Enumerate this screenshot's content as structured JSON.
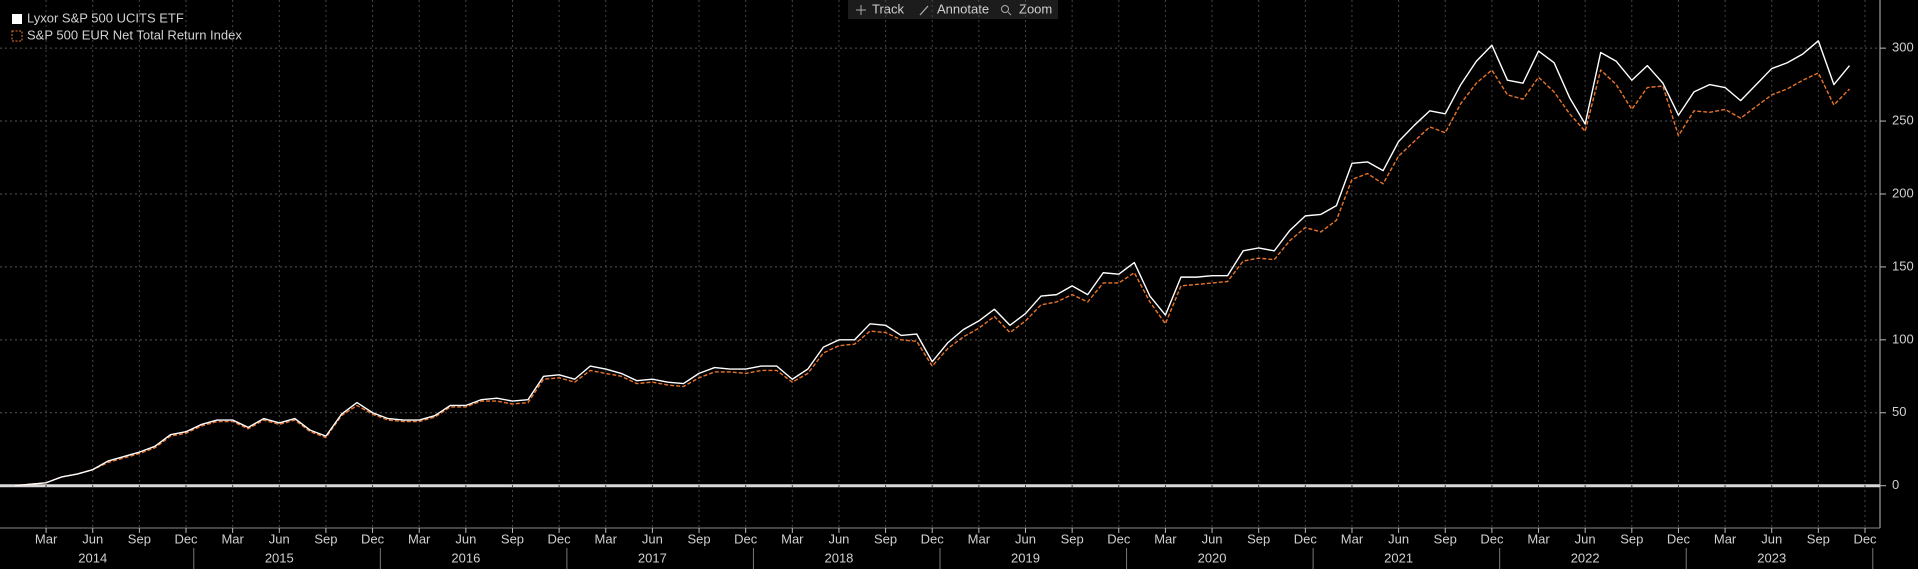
{
  "toolbar": [
    "Track",
    "Annotate",
    "Zoom"
  ],
  "chart_data": {
    "type": "line",
    "x": [
      "2014-01",
      "2014-02",
      "2014-03",
      "2014-04",
      "2014-05",
      "2014-06",
      "2014-07",
      "2014-08",
      "2014-09",
      "2014-10",
      "2014-11",
      "2014-12",
      "2015-01",
      "2015-02",
      "2015-03",
      "2015-04",
      "2015-05",
      "2015-06",
      "2015-07",
      "2015-08",
      "2015-09",
      "2015-10",
      "2015-11",
      "2015-12",
      "2016-01",
      "2016-02",
      "2016-03",
      "2016-04",
      "2016-05",
      "2016-06",
      "2016-07",
      "2016-08",
      "2016-09",
      "2016-10",
      "2016-11",
      "2016-12",
      "2017-01",
      "2017-02",
      "2017-03",
      "2017-04",
      "2017-05",
      "2017-06",
      "2017-07",
      "2017-08",
      "2017-09",
      "2017-10",
      "2017-11",
      "2017-12",
      "2018-01",
      "2018-02",
      "2018-03",
      "2018-04",
      "2018-05",
      "2018-06",
      "2018-07",
      "2018-08",
      "2018-09",
      "2018-10",
      "2018-11",
      "2018-12",
      "2019-01",
      "2019-02",
      "2019-03",
      "2019-04",
      "2019-05",
      "2019-06",
      "2019-07",
      "2019-08",
      "2019-09",
      "2019-10",
      "2019-11",
      "2019-12",
      "2020-01",
      "2020-02",
      "2020-03",
      "2020-04",
      "2020-05",
      "2020-06",
      "2020-07",
      "2020-08",
      "2020-09",
      "2020-10",
      "2020-11",
      "2020-12",
      "2021-01",
      "2021-02",
      "2021-03",
      "2021-04",
      "2021-05",
      "2021-06",
      "2021-07",
      "2021-08",
      "2021-09",
      "2021-10",
      "2021-11",
      "2021-12",
      "2022-01",
      "2022-02",
      "2022-03",
      "2022-04",
      "2022-05",
      "2022-06",
      "2022-07",
      "2022-08",
      "2022-09",
      "2022-10",
      "2022-11",
      "2022-12",
      "2023-01",
      "2023-02",
      "2023-03",
      "2023-04",
      "2023-05",
      "2023-06",
      "2023-07",
      "2023-08",
      "2023-09",
      "2023-10",
      "2023-11"
    ],
    "series": [
      {
        "name": "Lyxor S&P 500 UCITS ETF",
        "color": "#ffffff",
        "dashed": false,
        "values": [
          0,
          1,
          2,
          6,
          8,
          11,
          17,
          20,
          23,
          27,
          35,
          37,
          42,
          45,
          45,
          40,
          46,
          43,
          46,
          38,
          34,
          49,
          57,
          50,
          46,
          45,
          45,
          48,
          55,
          55,
          59,
          60,
          58,
          59,
          75,
          76,
          73,
          82,
          80,
          77,
          72,
          73,
          71,
          70,
          77,
          81,
          80,
          80,
          82,
          82,
          73,
          80,
          95,
          100,
          100,
          111,
          110,
          103,
          104,
          85,
          98,
          107,
          113,
          121,
          110,
          118,
          130,
          131,
          137,
          131,
          146,
          145,
          153,
          130,
          117,
          143,
          143,
          144,
          144,
          161,
          163,
          161,
          175,
          185,
          186,
          192,
          221,
          222,
          216,
          236,
          247,
          257,
          255,
          275,
          291,
          302,
          278,
          276,
          298,
          290,
          266,
          248,
          297,
          291,
          278,
          288,
          276,
          254,
          270,
          275,
          273,
          264,
          275,
          286,
          290,
          296,
          305,
          275,
          288
        ]
      },
      {
        "name": "S&P 500 EUR Net Total Return Index",
        "color": "#e8742a",
        "dashed": true,
        "values": [
          0,
          1,
          2,
          6,
          8,
          11,
          16,
          19,
          22,
          26,
          34,
          36,
          41,
          44,
          44,
          39,
          45,
          42,
          45,
          37,
          33,
          48,
          55,
          49,
          45,
          44,
          44,
          47,
          54,
          54,
          58,
          58,
          56,
          57,
          73,
          74,
          71,
          79,
          77,
          75,
          70,
          71,
          69,
          68,
          74,
          78,
          78,
          77,
          79,
          79,
          71,
          77,
          91,
          96,
          97,
          106,
          105,
          100,
          99,
          82,
          94,
          102,
          108,
          116,
          105,
          113,
          124,
          126,
          131,
          126,
          139,
          139,
          146,
          126,
          111,
          137,
          138,
          139,
          140,
          154,
          156,
          155,
          168,
          177,
          174,
          182,
          210,
          214,
          207,
          226,
          236,
          246,
          242,
          262,
          276,
          285,
          268,
          265,
          280,
          270,
          255,
          243,
          285,
          275,
          258,
          273,
          274,
          240,
          257,
          256,
          258,
          252,
          260,
          268,
          272,
          278,
          283,
          261,
          272
        ]
      }
    ],
    "xlim": [
      "2014-01",
      "2023-12"
    ],
    "xticks": [
      {
        "value": "2014-03",
        "label": "Mar"
      },
      {
        "value": "2014-06",
        "label": "Jun"
      },
      {
        "value": "2014-09",
        "label": "Sep"
      },
      {
        "value": "2014-12",
        "label": "Dec"
      },
      {
        "value": "2015-03",
        "label": "Mar"
      },
      {
        "value": "2015-06",
        "label": "Jun"
      },
      {
        "value": "2015-09",
        "label": "Sep"
      },
      {
        "value": "2015-12",
        "label": "Dec"
      },
      {
        "value": "2016-03",
        "label": "Mar"
      },
      {
        "value": "2016-06",
        "label": "Jun"
      },
      {
        "value": "2016-09",
        "label": "Sep"
      },
      {
        "value": "2016-12",
        "label": "Dec"
      },
      {
        "value": "2017-03",
        "label": "Mar"
      },
      {
        "value": "2017-06",
        "label": "Jun"
      },
      {
        "value": "2017-09",
        "label": "Sep"
      },
      {
        "value": "2017-12",
        "label": "Dec"
      },
      {
        "value": "2018-03",
        "label": "Mar"
      },
      {
        "value": "2018-06",
        "label": "Jun"
      },
      {
        "value": "2018-09",
        "label": "Sep"
      },
      {
        "value": "2018-12",
        "label": "Dec"
      },
      {
        "value": "2019-03",
        "label": "Mar"
      },
      {
        "value": "2019-06",
        "label": "Jun"
      },
      {
        "value": "2019-09",
        "label": "Sep"
      },
      {
        "value": "2019-12",
        "label": "Dec"
      },
      {
        "value": "2020-03",
        "label": "Mar"
      },
      {
        "value": "2020-06",
        "label": "Jun"
      },
      {
        "value": "2020-09",
        "label": "Sep"
      },
      {
        "value": "2020-12",
        "label": "Dec"
      },
      {
        "value": "2021-03",
        "label": "Mar"
      },
      {
        "value": "2021-06",
        "label": "Jun"
      },
      {
        "value": "2021-09",
        "label": "Sep"
      },
      {
        "value": "2021-12",
        "label": "Dec"
      },
      {
        "value": "2022-03",
        "label": "Mar"
      },
      {
        "value": "2022-06",
        "label": "Jun"
      },
      {
        "value": "2022-09",
        "label": "Sep"
      },
      {
        "value": "2022-12",
        "label": "Dec"
      },
      {
        "value": "2023-03",
        "label": "Mar"
      },
      {
        "value": "2023-06",
        "label": "Jun"
      },
      {
        "value": "2023-09",
        "label": "Sep"
      },
      {
        "value": "2023-12",
        "label": "Dec"
      }
    ],
    "years": [
      "2014",
      "2015",
      "2016",
      "2017",
      "2018",
      "2019",
      "2020",
      "2021",
      "2022",
      "2023"
    ],
    "ylim": [
      -29,
      333
    ],
    "yticks": [
      0,
      50,
      100,
      150,
      200,
      250,
      300
    ],
    "grid": true,
    "legend": "top-left"
  }
}
